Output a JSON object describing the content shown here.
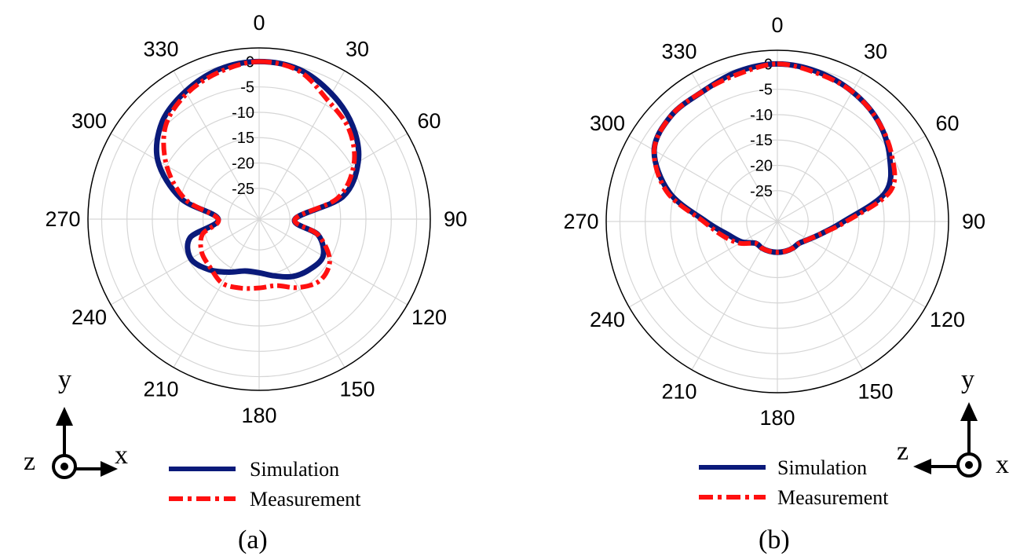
{
  "colors": {
    "simulation": "#0a1a7a",
    "measurement": "#ff1010",
    "grid": "#d6d6d6",
    "outer_circle": "#000000"
  },
  "chart_data": [
    {
      "type": "polar-line",
      "caption": "(a)",
      "angular_ticks": [
        "0",
        "30",
        "60",
        "90",
        "120",
        "150",
        "180",
        "210",
        "240",
        "270",
        "300",
        "330"
      ],
      "radial_ticks": [
        "0",
        "-5",
        "-10",
        "-15",
        "-20",
        "-25"
      ],
      "rlim": [
        -25,
        0
      ],
      "direction": "clockwise",
      "zero_location": "top",
      "grid": true,
      "legend": {
        "placement": "bottom",
        "entries": [
          "Simulation",
          "Measurement"
        ]
      },
      "coordinate_icon": {
        "placement": "bottom-left",
        "up_label": "y",
        "side_label": "x",
        "center_label": "z"
      },
      "series": [
        {
          "name": "Simulation",
          "style": "solid",
          "theta": [
            0,
            15,
            30,
            45,
            60,
            75,
            90,
            105,
            120,
            135,
            150,
            165,
            180,
            195,
            210,
            225,
            240,
            255,
            270,
            285,
            300,
            315,
            330,
            345,
            360
          ],
          "r": [
            0,
            -0.5,
            -2.5,
            -5,
            -8.5,
            -14,
            -24,
            -19,
            -16.5,
            -17,
            -18,
            -19.5,
            -20.5,
            -20.5,
            -19,
            -17,
            -15.5,
            -17,
            -23,
            -15,
            -8,
            -4,
            -2,
            -0.5,
            0
          ]
        },
        {
          "name": "Measurement",
          "style": "dash-dot",
          "theta": [
            0,
            15,
            30,
            45,
            60,
            75,
            90,
            105,
            120,
            135,
            150,
            165,
            180,
            195,
            210,
            225,
            240,
            255,
            270,
            285,
            300,
            315,
            330,
            345,
            360
          ],
          "r": [
            0,
            -0.8,
            -4,
            -6,
            -9.5,
            -15,
            -24,
            -19,
            -15,
            -14,
            -15.5,
            -17.5,
            -17.5,
            -17,
            -16.5,
            -17.5,
            -18,
            -19.5,
            -23,
            -16,
            -10,
            -5,
            -2.5,
            -1,
            0
          ]
        }
      ]
    },
    {
      "type": "polar-line",
      "caption": "(b)",
      "angular_ticks": [
        "0",
        "30",
        "60",
        "90",
        "120",
        "150",
        "180",
        "210",
        "240",
        "270",
        "300",
        "330"
      ],
      "radial_ticks": [
        "0",
        "-5",
        "-10",
        "-15",
        "-20",
        "-25"
      ],
      "rlim": [
        -25,
        0
      ],
      "direction": "clockwise",
      "zero_location": "top",
      "grid": true,
      "legend": {
        "placement": "bottom",
        "entries": [
          "Simulation",
          "Measurement"
        ]
      },
      "coordinate_icon": {
        "placement": "bottom-right",
        "up_label": "y",
        "side_label": "z",
        "center_label": "x"
      },
      "series": [
        {
          "name": "Simulation",
          "style": "solid",
          "theta": [
            0,
            15,
            30,
            45,
            60,
            75,
            90,
            105,
            120,
            135,
            150,
            165,
            180,
            195,
            210,
            225,
            240,
            255,
            270,
            285,
            300,
            315,
            330,
            345,
            360
          ],
          "r": [
            0,
            -0.5,
            -1.5,
            -3,
            -5.5,
            -9,
            -18,
            -22,
            -24,
            -25,
            -25,
            -25,
            -25,
            -25,
            -25,
            -25,
            -23,
            -21,
            -17,
            -9,
            -3,
            -1.5,
            -1.5,
            -0.5,
            0
          ],
          "_note": null
        },
        {
          "name": "Measurement",
          "style": "dash-dot",
          "theta": [
            0,
            15,
            30,
            45,
            60,
            75,
            90,
            105,
            120,
            135,
            150,
            165,
            180,
            195,
            210,
            225,
            240,
            255,
            270,
            285,
            300,
            315,
            330,
            345,
            360
          ],
          "r": [
            0,
            -0.8,
            -1.5,
            -3,
            -5,
            -8,
            -17.5,
            -22,
            -24,
            -25,
            -25,
            -25,
            -25,
            -25,
            -25,
            -25,
            -22.5,
            -20,
            -16.5,
            -8.5,
            -3,
            -1.5,
            -1.5,
            -1,
            0
          ]
        }
      ]
    }
  ]
}
